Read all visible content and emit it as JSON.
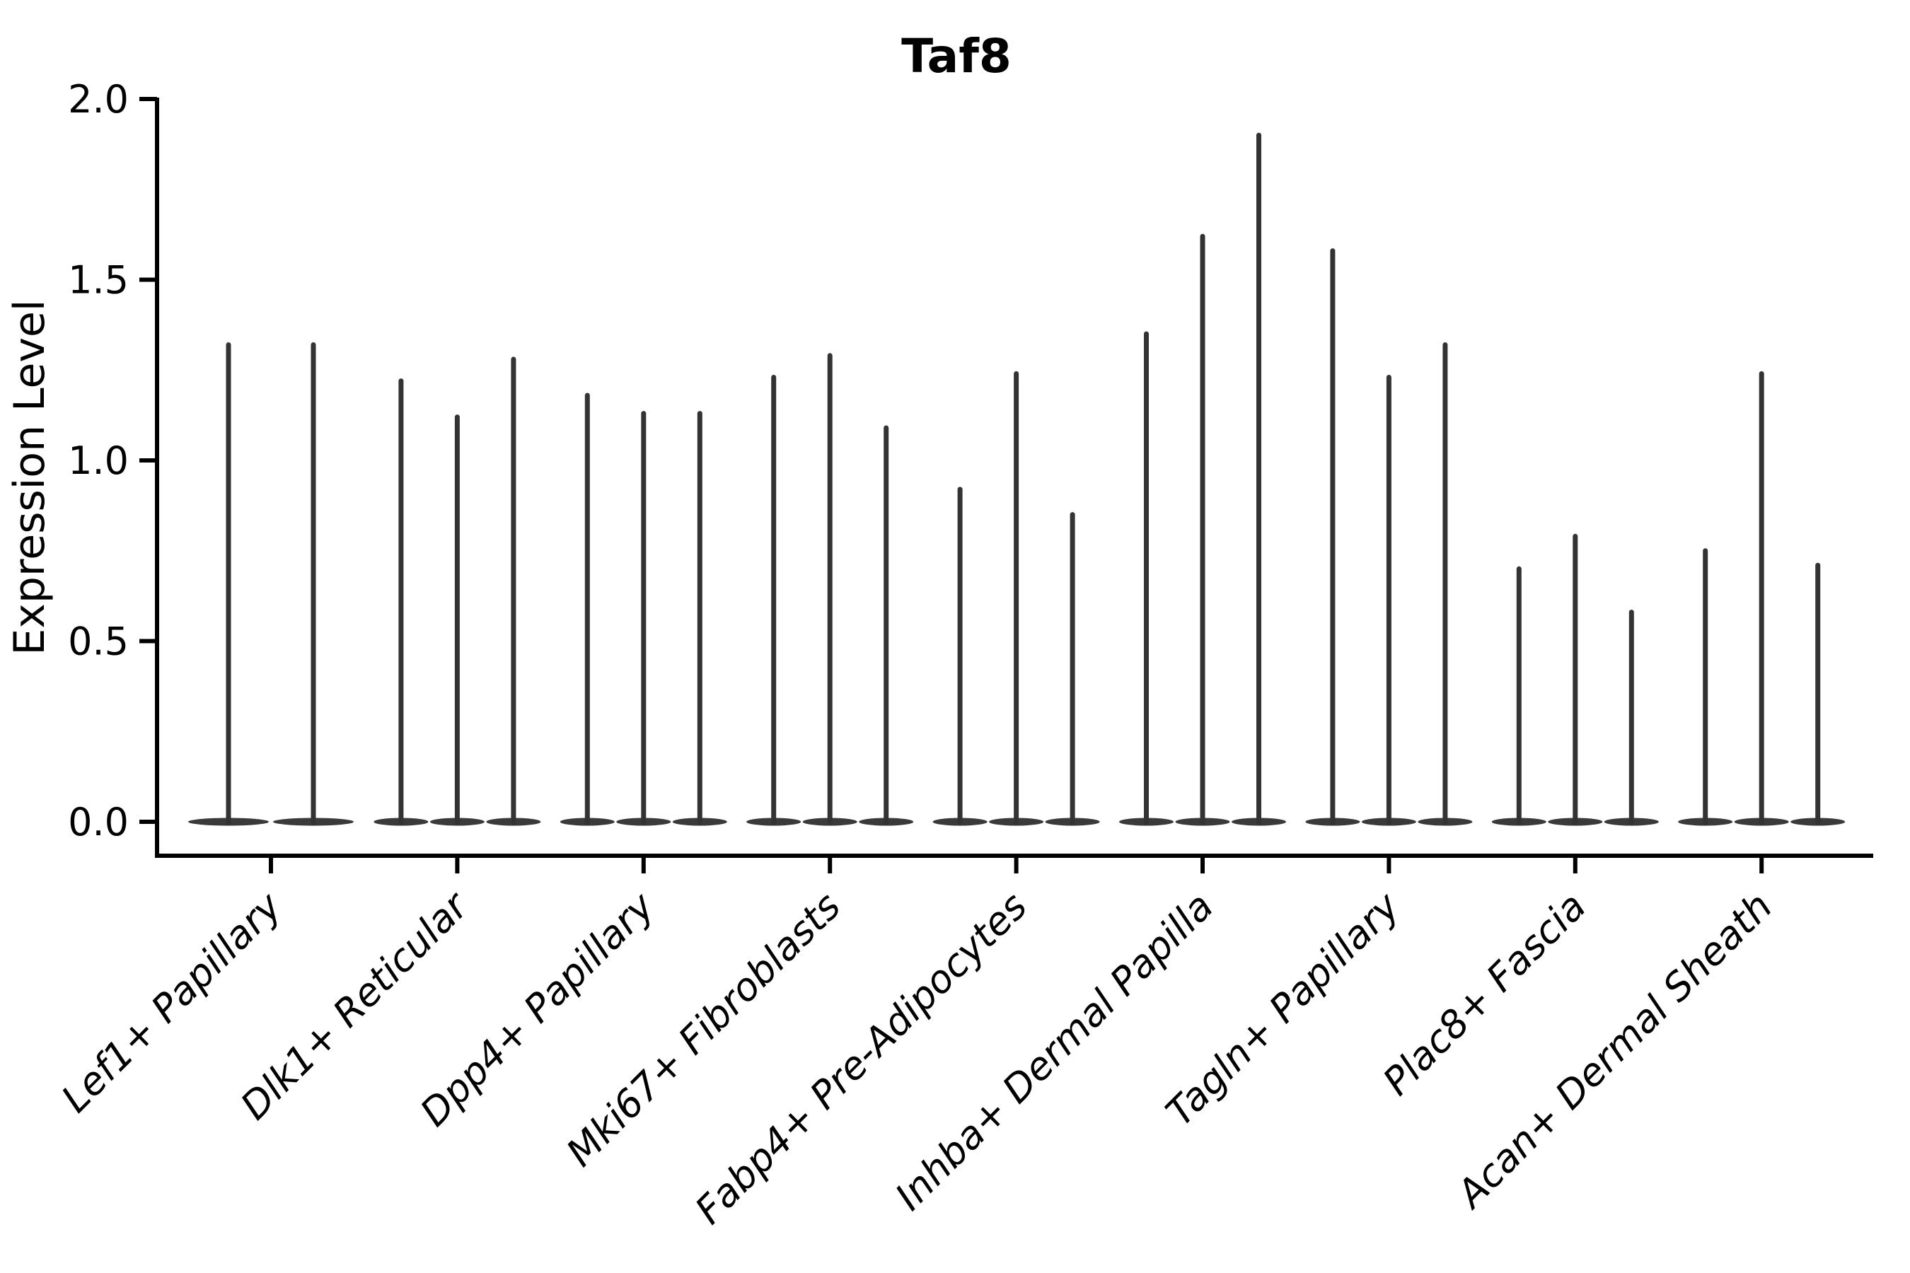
{
  "title": "Taf8",
  "colors": {
    "violin": "#333333",
    "violin_base": "#3a3a3a",
    "axis": "#000000",
    "background": "#ffffff"
  },
  "chart_data": {
    "type": "violin",
    "title": "Taf8",
    "xlabel": "",
    "ylabel": "Expression Level",
    "ylim": [
      0.0,
      2.0
    ],
    "yticks": [
      0.0,
      0.5,
      1.0,
      1.5,
      2.0
    ],
    "ytick_labels": [
      "0.0",
      "0.5",
      "1.0",
      "1.5",
      "2.0"
    ],
    "grid": false,
    "legend": "none",
    "categories": [
      "Lef1+ Papillary",
      "Dlk1+ Reticular",
      "Dpp4+ Papillary",
      "Mki67+ Fibroblasts",
      "Fabp4+ Pre-Adipocytes",
      "Inhba+ Dermal Papilla",
      "Tagln+ Papillary",
      "Plac8+ Fascia",
      "Acan+ Dermal Sheath"
    ],
    "series": [
      {
        "category": "Lef1+ Papillary",
        "violin_max_expression": [
          1.32,
          1.32
        ]
      },
      {
        "category": "Dlk1+ Reticular",
        "violin_max_expression": [
          1.22,
          1.12,
          1.28
        ]
      },
      {
        "category": "Dpp4+ Papillary",
        "violin_max_expression": [
          1.18,
          1.13,
          1.13
        ]
      },
      {
        "category": "Mki67+ Fibroblasts",
        "violin_max_expression": [
          1.23,
          1.29,
          1.09
        ]
      },
      {
        "category": "Fabp4+ Pre-Adipocytes",
        "violin_max_expression": [
          0.92,
          1.24,
          0.85
        ]
      },
      {
        "category": "Inhba+ Dermal Papilla",
        "violin_max_expression": [
          1.35,
          1.62,
          1.9
        ]
      },
      {
        "category": "Tagln+ Papillary",
        "violin_max_expression": [
          1.58,
          1.23,
          1.32
        ]
      },
      {
        "category": "Plac8+ Fascia",
        "violin_max_expression": [
          0.7,
          0.79,
          0.58
        ]
      },
      {
        "category": "Acan+ Dermal Sheath",
        "violin_max_expression": [
          0.75,
          1.24,
          0.71
        ]
      }
    ],
    "violin_min_expression": 0.0,
    "style_note": "Seurat-style stacked violin: each violin is a thin vertical spike rising from a flat disc-shaped base at expression 0"
  }
}
